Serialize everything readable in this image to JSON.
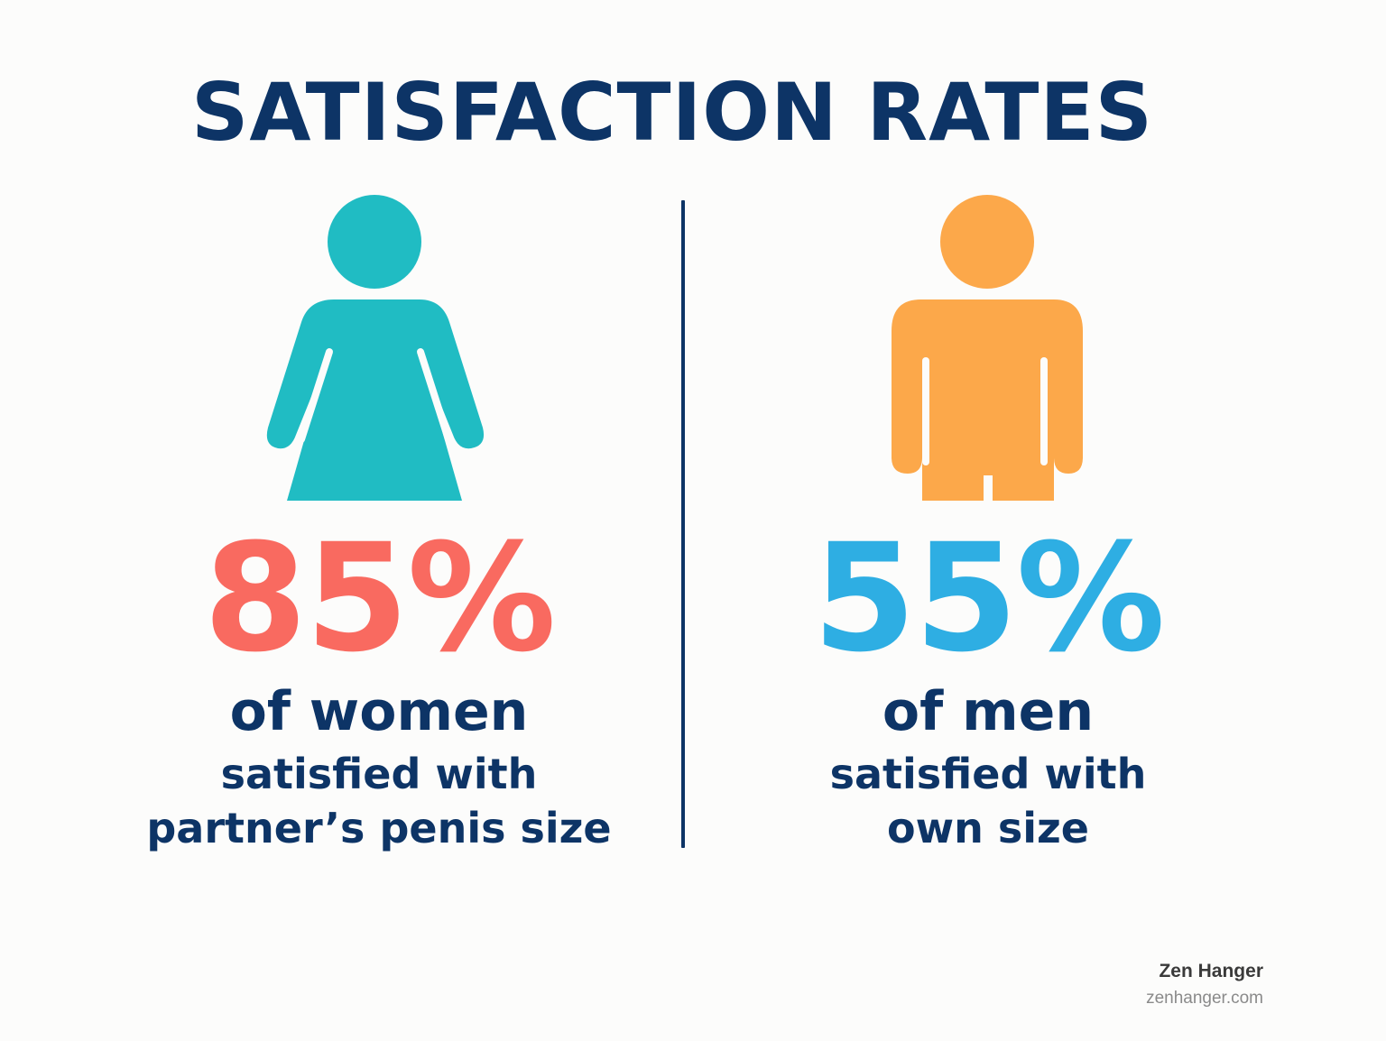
{
  "title": "SATISFACTION RATES",
  "colors": {
    "navy": "#0d3466",
    "teal": "#20bcc3",
    "orange": "#fca84a",
    "coral": "#f96a60",
    "sky": "#2eaee3"
  },
  "women": {
    "icon": "woman-icon",
    "percent": "85%",
    "group": "of women",
    "desc_line1": "satisfied with",
    "desc_line2": "partner’s penis size"
  },
  "men": {
    "icon": "man-icon",
    "percent": "55%",
    "group": "of men",
    "desc_line1": "satisfied with",
    "desc_line2": "own size"
  },
  "brand": {
    "name": "Zen Hanger",
    "url": "zenhanger.com"
  }
}
